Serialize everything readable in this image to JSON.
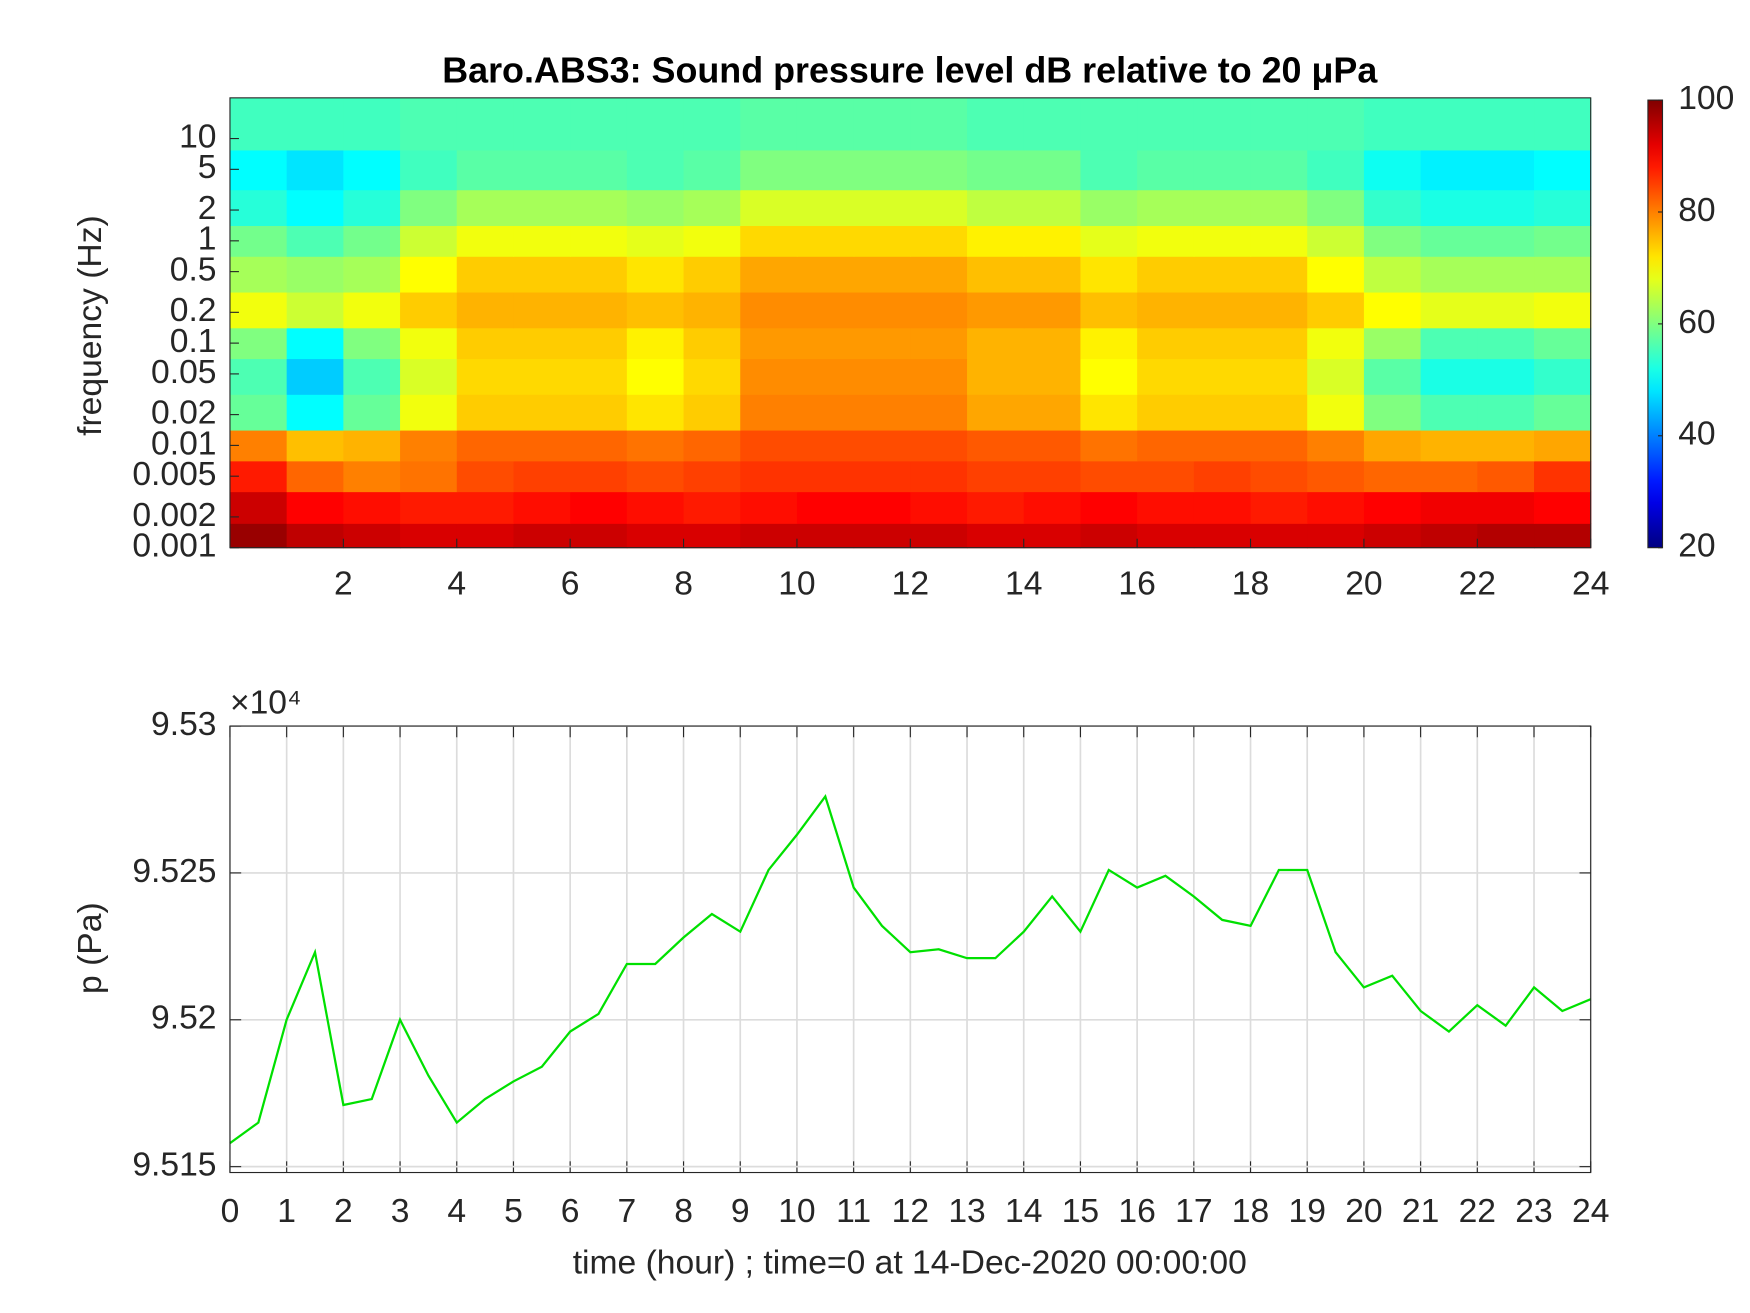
{
  "chart_data": [
    {
      "type": "heatmap",
      "title": "Baro.ABS3: Sound pressure level dB relative to 20 μPa",
      "y_label": "frequency (Hz)",
      "x": [
        0.5,
        1.5,
        2.5,
        3.5,
        4.5,
        5.5,
        6.5,
        7.5,
        8.5,
        9.5,
        10.5,
        11.5,
        12.5,
        13.5,
        14.5,
        15.5,
        16.5,
        17.5,
        18.5,
        19.5,
        20.5,
        21.5,
        22.5,
        23.5
      ],
      "y": [
        0.0012,
        0.0025,
        0.005,
        0.01,
        0.02,
        0.05,
        0.1,
        0.2,
        0.5,
        1,
        2,
        5,
        12
      ],
      "z": [
        [
          98,
          95,
          94,
          93,
          93,
          94,
          94,
          93,
          93,
          94,
          94,
          94,
          94,
          93,
          93,
          94,
          93,
          93,
          93,
          93,
          94,
          95,
          96,
          96
        ],
        [
          94,
          90,
          89,
          88,
          88,
          89,
          90,
          89,
          88,
          89,
          90,
          90,
          89,
          88,
          89,
          90,
          89,
          89,
          88,
          89,
          90,
          91,
          91,
          90
        ],
        [
          88,
          82,
          80,
          81,
          84,
          85,
          85,
          84,
          85,
          86,
          86,
          86,
          86,
          85,
          85,
          84,
          84,
          85,
          84,
          83,
          82,
          82,
          83,
          86
        ],
        [
          80,
          75,
          76,
          80,
          82,
          82,
          82,
          81,
          82,
          84,
          84,
          84,
          84,
          83,
          83,
          81,
          82,
          82,
          82,
          80,
          77,
          76,
          76,
          77
        ],
        [
          58,
          50,
          58,
          69,
          74,
          74,
          74,
          72,
          74,
          80,
          80,
          80,
          80,
          77,
          77,
          72,
          74,
          74,
          74,
          69,
          60,
          56,
          56,
          58
        ],
        [
          56,
          46,
          56,
          67,
          73,
          73,
          73,
          70,
          73,
          79,
          79,
          79,
          79,
          76,
          76,
          70,
          73,
          73,
          73,
          67,
          57,
          52,
          52,
          54
        ],
        [
          60,
          50,
          60,
          69,
          74,
          74,
          74,
          71,
          74,
          78,
          78,
          78,
          78,
          76,
          76,
          71,
          74,
          74,
          74,
          69,
          62,
          56,
          56,
          58
        ],
        [
          69,
          66,
          69,
          74,
          76,
          76,
          76,
          75,
          76,
          79,
          79,
          79,
          79,
          78,
          78,
          75,
          76,
          76,
          76,
          74,
          70,
          68,
          68,
          69
        ],
        [
          63,
          62,
          63,
          70,
          74,
          74,
          74,
          72,
          74,
          77,
          77,
          77,
          77,
          75,
          75,
          72,
          74,
          74,
          74,
          70,
          65,
          63,
          63,
          63
        ],
        [
          59,
          56,
          59,
          66,
          69,
          69,
          69,
          68,
          69,
          73,
          73,
          73,
          73,
          71,
          71,
          68,
          69,
          69,
          69,
          66,
          60,
          58,
          58,
          59
        ],
        [
          53,
          50,
          53,
          60,
          63,
          63,
          63,
          62,
          63,
          67,
          67,
          67,
          67,
          65,
          65,
          62,
          63,
          63,
          63,
          60,
          54,
          52,
          52,
          53
        ],
        [
          50,
          48,
          50,
          55,
          57,
          57,
          57,
          56,
          57,
          60,
          60,
          60,
          60,
          59,
          59,
          56,
          57,
          57,
          57,
          55,
          51,
          49,
          49,
          50
        ],
        [
          55,
          55,
          55,
          56,
          56,
          56,
          56,
          56,
          56,
          57,
          57,
          57,
          57,
          56,
          56,
          56,
          56,
          56,
          56,
          56,
          55,
          55,
          55,
          55
        ]
      ],
      "xlim": [
        0,
        24
      ],
      "xticks": [
        2,
        4,
        6,
        8,
        10,
        12,
        14,
        16,
        18,
        20,
        22,
        24
      ],
      "ylim": [
        0.001,
        25
      ],
      "log_y": true,
      "yticks": [
        0.001,
        0.002,
        0.005,
        0.01,
        0.02,
        0.05,
        0.1,
        0.2,
        0.5,
        1,
        2,
        5,
        10
      ],
      "colormap": "jet",
      "clim": [
        20,
        100
      ],
      "colorbar_ticks": [
        20,
        40,
        60,
        80,
        100
      ]
    },
    {
      "type": "line",
      "x_label": "time (hour) ; time=0 at 14-Dec-2020 00:00:00",
      "y_label": "p (Pa)",
      "y_multiplier": "×10⁴",
      "x": [
        0,
        0.5,
        1,
        1.5,
        2,
        2.5,
        3,
        3.5,
        4,
        4.5,
        5,
        5.5,
        6,
        6.5,
        7,
        7.5,
        8,
        8.5,
        9,
        9.5,
        10,
        10.5,
        11,
        11.5,
        12,
        12.5,
        13,
        13.5,
        14,
        14.5,
        15,
        15.5,
        16,
        16.5,
        17,
        17.5,
        18,
        18.5,
        19,
        19.5,
        20,
        20.5,
        21,
        21.5,
        22,
        22.5,
        23,
        23.5,
        24
      ],
      "values": [
        95158,
        95165,
        95200,
        95223,
        95171,
        95173,
        95200,
        95181,
        95165,
        95173,
        95179,
        95184,
        95196,
        95202,
        95219,
        95219,
        95228,
        95236,
        95230,
        95251,
        95263,
        95276,
        95245,
        95232,
        95223,
        95224,
        95221,
        95221,
        95230,
        95242,
        95230,
        95251,
        95245,
        95249,
        95242,
        95234,
        95232,
        95251,
        95251,
        95223,
        95211,
        95215,
        95203,
        95196,
        95205,
        95198,
        95211,
        95203,
        95207
      ],
      "color": "#00e000",
      "xlim": [
        0,
        24
      ],
      "xticks": [
        0,
        1,
        2,
        3,
        4,
        5,
        6,
        7,
        8,
        9,
        10,
        11,
        12,
        13,
        14,
        15,
        16,
        17,
        18,
        19,
        20,
        21,
        22,
        23,
        24
      ],
      "ylim": [
        95148,
        95300
      ],
      "yticks": [
        {
          "value": 95150,
          "label": "9.515"
        },
        {
          "value": 95200,
          "label": "9.52"
        },
        {
          "value": 95250,
          "label": "9.525"
        },
        {
          "value": 95300,
          "label": "9.53"
        }
      ],
      "grid": true
    }
  ]
}
